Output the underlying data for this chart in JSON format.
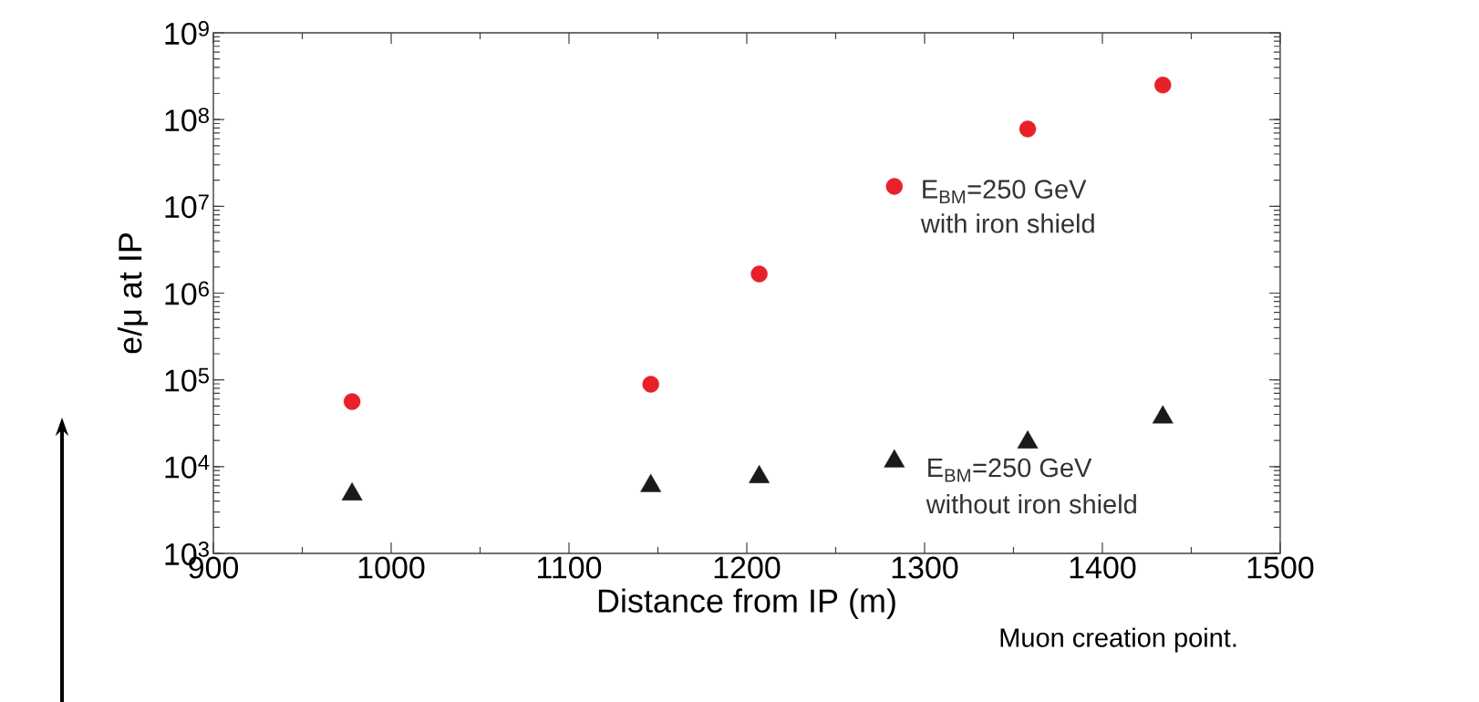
{
  "chart_data": {
    "type": "scatter",
    "xlabel": "Distance from IP (m)",
    "ylabel": "e/μ at IP",
    "log": "y",
    "grid": false,
    "xlim": [
      900,
      1500
    ],
    "xticks": [
      900,
      1000,
      1100,
      1200,
      1300,
      1400,
      1500
    ],
    "ylim": [
      1000,
      1000000000
    ],
    "yticks": [
      {
        "value": 1000,
        "label": "10$^{3}$"
      },
      {
        "value": 10000,
        "label": "10$^{4}$"
      },
      {
        "value": 100000,
        "label": "10$^{5}$"
      },
      {
        "value": 1000000,
        "label": "10$^{6}$"
      },
      {
        "value": 10000000,
        "label": "10$^{7}$"
      },
      {
        "value": 100000000,
        "label": "10$^{8}$"
      },
      {
        "value": 1000000000,
        "label": "10$^{9}$"
      }
    ],
    "series": [
      {
        "color": "#e8202a",
        "marker": "circle",
        "x": [
          978,
          1146,
          1207,
          1283,
          1358,
          1434
        ],
        "values": [
          56000,
          89000,
          1660000,
          17000000,
          78000000,
          250000000
        ]
      },
      {
        "color": "#1a1a1a",
        "marker": "triangle",
        "x": [
          978,
          1146,
          1207,
          1283,
          1358,
          1434
        ],
        "values": [
          4800,
          6000,
          7600,
          11500,
          19000,
          37000
        ]
      }
    ],
    "annotations": [
      "E$_{BM}$=250 GeV",
      "with iron shield",
      "E$_{BM}$=250 GeV",
      "without iron shield",
      "Muon creation point."
    ]
  }
}
